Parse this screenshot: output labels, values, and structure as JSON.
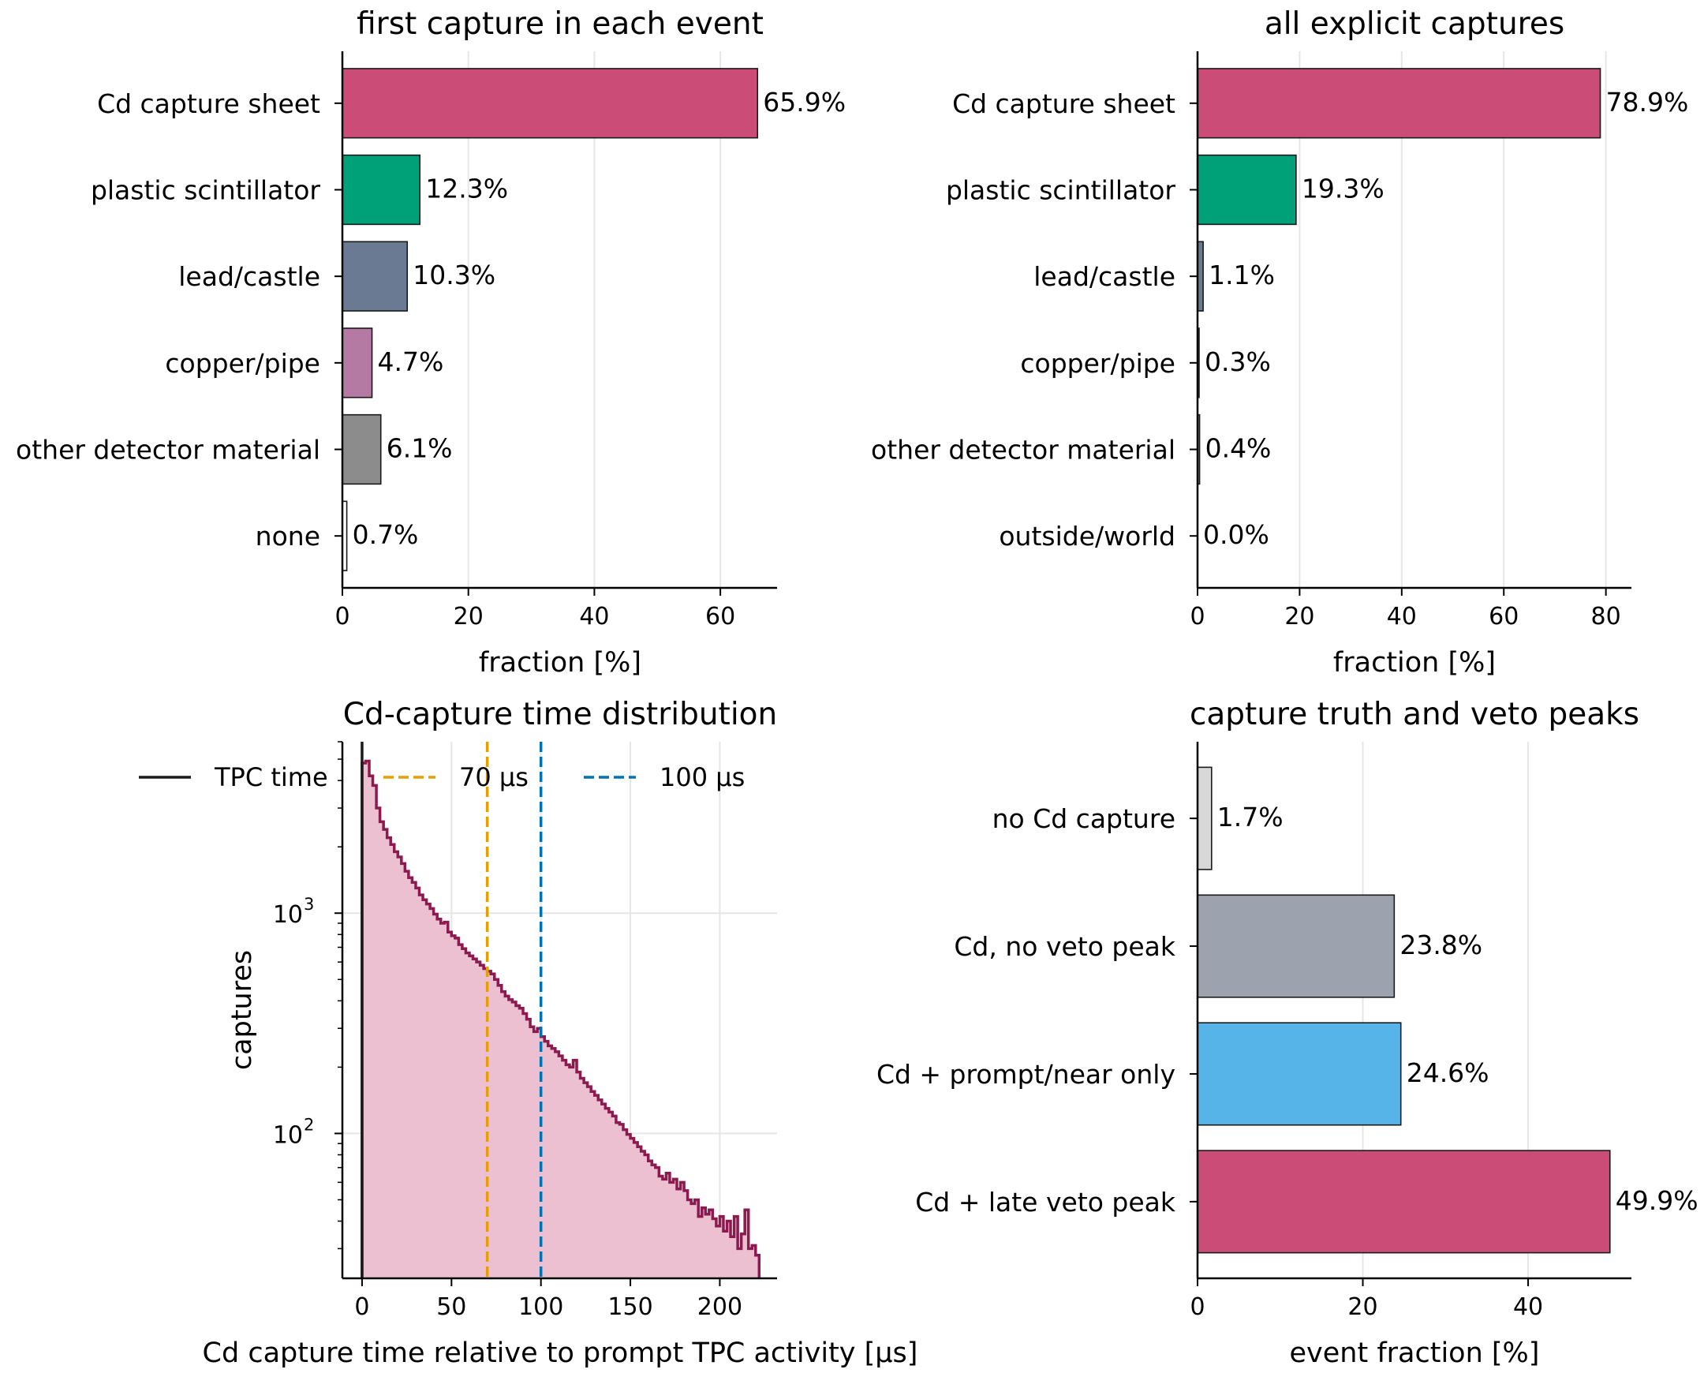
{
  "chart_data": [
    {
      "type": "bar",
      "orientation": "horizontal",
      "title": "first capture in each event",
      "xlabel": "fraction [%]",
      "xlim": [
        0,
        69
      ],
      "xticks": [
        0,
        20,
        40,
        60
      ],
      "grid": true,
      "categories": [
        "Cd capture sheet",
        "plastic scintillator",
        "lead/castle",
        "copper/pipe",
        "other detector material",
        "none"
      ],
      "values": [
        65.9,
        12.3,
        10.3,
        4.7,
        6.1,
        0.7
      ],
      "value_labels": [
        "65.9%",
        "12.3%",
        "10.3%",
        "4.7%",
        "6.1%",
        "0.7%"
      ],
      "colors": [
        "#cc4c78",
        "#00a079",
        "#6a7a92",
        "#b57aa4",
        "#8c8c8c",
        "#ffffff"
      ]
    },
    {
      "type": "bar",
      "orientation": "horizontal",
      "title": "all explicit captures",
      "xlabel": "fraction [%]",
      "xlim": [
        0,
        85
      ],
      "xticks": [
        0,
        20,
        40,
        60,
        80
      ],
      "grid": true,
      "categories": [
        "Cd capture sheet",
        "plastic scintillator",
        "lead/castle",
        "copper/pipe",
        "other detector material",
        "outside/world"
      ],
      "values": [
        78.9,
        19.3,
        1.1,
        0.3,
        0.4,
        0.0
      ],
      "value_labels": [
        "78.9%",
        "19.3%",
        "1.1%",
        "0.3%",
        "0.4%",
        "0.0%"
      ],
      "colors": [
        "#cc4c78",
        "#00a079",
        "#6a7a92",
        "#b57aa4",
        "#8c8c8c",
        "#ffffff"
      ]
    },
    {
      "type": "area",
      "subtype": "histogram",
      "title": "Cd-capture time distribution",
      "xlabel": "Cd capture time relative to prompt TPC activity [μs]",
      "ylabel": "captures",
      "yscale": "log",
      "xlim": [
        -11,
        232
      ],
      "ylim": [
        22,
        6000
      ],
      "xticks": [
        0,
        50,
        100,
        150,
        200
      ],
      "yticks": [
        100,
        1000
      ],
      "ytick_labels": [
        {
          "base": "10",
          "exp": "2"
        },
        {
          "base": "10",
          "exp": "3"
        }
      ],
      "grid": true,
      "legend_position": "top",
      "legend": [
        "TPC time",
        "70 μs",
        "100 μs"
      ],
      "vlines": [
        {
          "x": 0,
          "color": "#1a1a1a",
          "style": "solid"
        },
        {
          "x": 70,
          "color": "#e69f00",
          "style": "dashed"
        },
        {
          "x": 100,
          "color": "#0072b2",
          "style": "dashed"
        }
      ],
      "bin_width": 2,
      "x": [
        0,
        2,
        4,
        6,
        8,
        10,
        12,
        14,
        16,
        18,
        20,
        22,
        24,
        26,
        28,
        30,
        32,
        34,
        36,
        38,
        40,
        42,
        44,
        46,
        48,
        50,
        52,
        54,
        56,
        58,
        60,
        62,
        64,
        66,
        68,
        70,
        72,
        74,
        76,
        78,
        80,
        82,
        84,
        86,
        88,
        90,
        92,
        94,
        96,
        98,
        100,
        102,
        104,
        106,
        108,
        110,
        112,
        114,
        116,
        118,
        120,
        122,
        124,
        126,
        128,
        130,
        132,
        134,
        136,
        138,
        140,
        142,
        144,
        146,
        148,
        150,
        152,
        154,
        156,
        158,
        160,
        162,
        164,
        166,
        168,
        170,
        172,
        174,
        176,
        178,
        180,
        182,
        184,
        186,
        188,
        190,
        192,
        194,
        196,
        198,
        200,
        202,
        204,
        206,
        208,
        210,
        212,
        214,
        216,
        218,
        220
      ],
      "values": [
        4800,
        4900,
        4200,
        3800,
        3000,
        2600,
        2400,
        2200,
        2050,
        1900,
        1800,
        1680,
        1550,
        1450,
        1380,
        1300,
        1210,
        1150,
        1100,
        1050,
        990,
        940,
        900,
        910,
        820,
        790,
        770,
        720,
        690,
        660,
        640,
        620,
        600,
        580,
        560,
        545,
        530,
        500,
        470,
        440,
        420,
        405,
        395,
        380,
        370,
        350,
        330,
        305,
        290,
        300,
        275,
        262,
        250,
        243,
        235,
        225,
        215,
        205,
        200,
        215,
        190,
        178,
        170,
        163,
        155,
        149,
        142,
        136,
        130,
        125,
        120,
        112,
        110,
        104,
        99,
        95,
        91,
        87,
        83,
        80,
        75,
        72,
        70,
        64,
        62,
        66,
        60,
        62,
        56,
        60,
        55,
        50,
        48,
        50,
        42,
        46,
        43,
        45,
        41,
        38,
        42,
        36,
        40,
        34,
        42,
        30,
        35,
        45,
        30,
        31,
        28
      ]
    },
    {
      "type": "bar",
      "orientation": "horizontal",
      "title": "capture truth and veto peaks",
      "xlabel": "event fraction [%]",
      "xlim": [
        0,
        52.5
      ],
      "xticks": [
        0,
        20,
        40
      ],
      "grid": true,
      "categories": [
        "no Cd capture",
        "Cd, no veto peak",
        "Cd + prompt/near only",
        "Cd + late veto peak"
      ],
      "values": [
        1.7,
        23.8,
        24.6,
        49.9
      ],
      "value_labels": [
        "1.7%",
        "23.8%",
        "24.6%",
        "49.9%"
      ],
      "colors": [
        "#d8d8d8",
        "#9ca3ae",
        "#56b4e9",
        "#cc4c78"
      ]
    }
  ]
}
